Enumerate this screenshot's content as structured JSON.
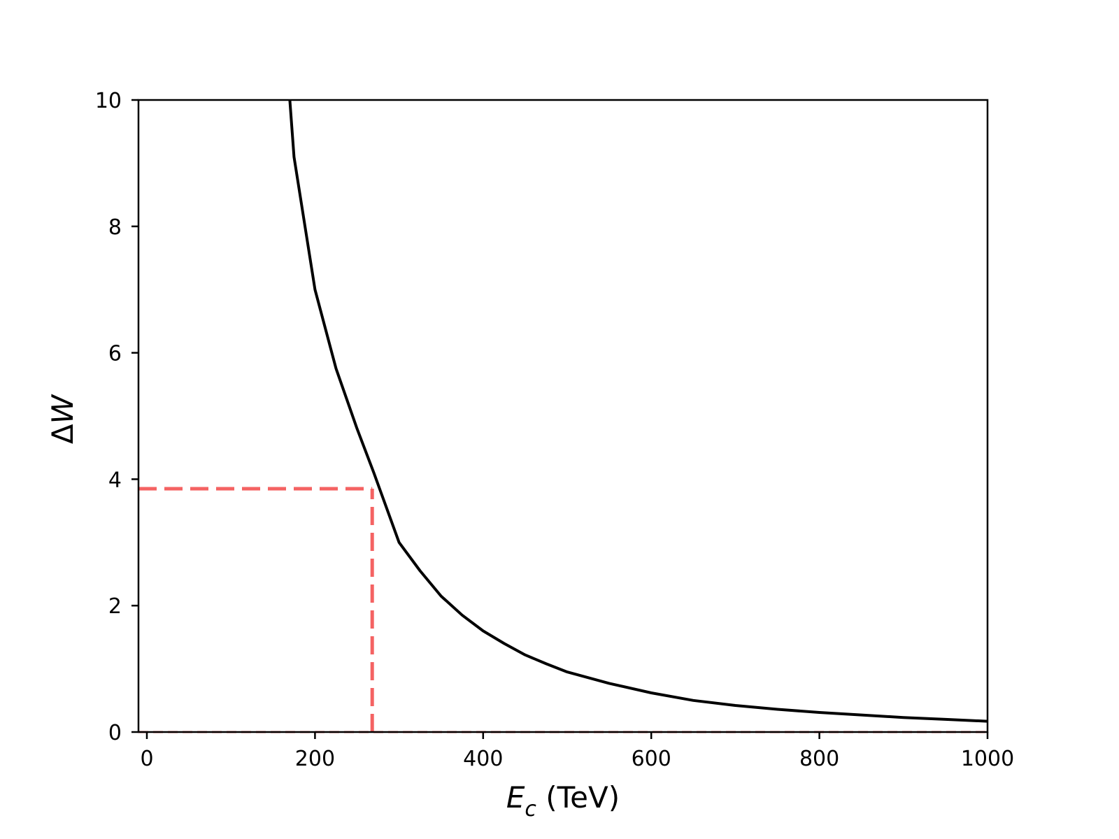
{
  "chart_data": {
    "type": "line",
    "xlabel": "E_c (TeV)",
    "xlabel_parts": {
      "symbol": "E",
      "subscript": "c",
      "unit": " (TeV)"
    },
    "ylabel": "ΔW",
    "ylabel_parts": {
      "delta": "Δ",
      "symbol": "W"
    },
    "xlim": [
      -10,
      1000
    ],
    "ylim": [
      0,
      10
    ],
    "x_ticks": [
      0,
      200,
      400,
      600,
      800,
      1000
    ],
    "y_ticks": [
      0,
      2,
      4,
      6,
      8,
      10
    ],
    "x_tick_labels": [
      "0",
      "200",
      "400",
      "600",
      "800",
      "1000"
    ],
    "y_tick_labels": [
      "0",
      "2",
      "4",
      "6",
      "8",
      "10"
    ],
    "grid": false,
    "legend": "none",
    "series": [
      {
        "color": "#000000",
        "style": "solid",
        "x": [
          175,
          200,
          225,
          250,
          270,
          300,
          325,
          350,
          375,
          400,
          425,
          450,
          475,
          500,
          550,
          600,
          650,
          700,
          750,
          800,
          850,
          900,
          950,
          1000
        ],
        "y": [
          9.1,
          7.0,
          5.75,
          4.8,
          4.1,
          3.0,
          2.55,
          2.15,
          1.85,
          1.6,
          1.4,
          1.22,
          1.08,
          0.95,
          0.77,
          0.62,
          0.5,
          0.42,
          0.36,
          0.31,
          0.27,
          0.23,
          0.2,
          0.17
        ]
      }
    ],
    "annotations": [
      {
        "type": "hline",
        "y": 3.85,
        "x_range": [
          -10,
          268
        ],
        "color": "#f46262",
        "style": "dashed"
      },
      {
        "type": "vline",
        "x": 268,
        "y_range": [
          0,
          3.85
        ],
        "color": "#f46262",
        "style": "dashed"
      },
      {
        "type": "hline",
        "y": 0,
        "x_range": [
          -10,
          1000
        ],
        "color": "#f46262",
        "style": "dashed"
      }
    ]
  }
}
